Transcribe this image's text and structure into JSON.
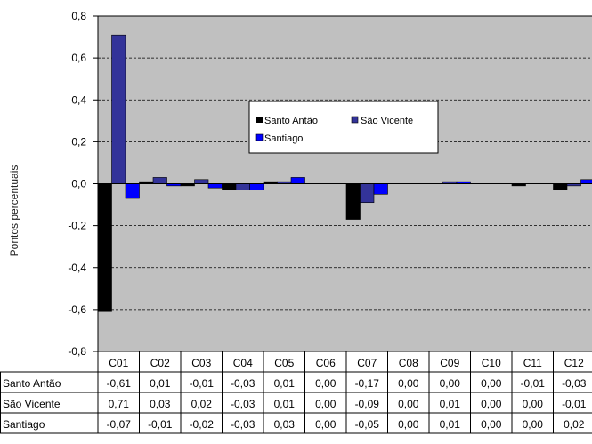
{
  "chart_data": {
    "type": "bar",
    "ylabel": "Pontos percentuais",
    "ylim": [
      -0.8,
      0.8
    ],
    "ytick_step": 0.2,
    "yticks": [
      "-0,8",
      "-0,6",
      "-0,4",
      "-0,2",
      "0,0",
      "0,2",
      "0,4",
      "0,6",
      "0,8"
    ],
    "grid": true,
    "legend": "inside top, two columns",
    "categories": [
      "C01",
      "C02",
      "C03",
      "C04",
      "C05",
      "C06",
      "C07",
      "C08",
      "C09",
      "C10",
      "C11",
      "C12"
    ],
    "series": [
      {
        "name": "Santo Antão",
        "color": "#000000",
        "values": [
          -0.61,
          0.01,
          -0.01,
          -0.03,
          0.01,
          0.0,
          -0.17,
          0.0,
          0.0,
          0.0,
          -0.01,
          -0.03
        ],
        "labels": [
          "-0,61",
          "0,01",
          "-0,01",
          "-0,03",
          "0,01",
          "0,00",
          "-0,17",
          "0,00",
          "0,00",
          "0,00",
          "-0,01",
          "-0,03"
        ]
      },
      {
        "name": "São Vicente",
        "color": "#333399",
        "values": [
          0.71,
          0.03,
          0.02,
          -0.03,
          0.01,
          0.0,
          -0.09,
          0.0,
          0.01,
          0.0,
          0.0,
          -0.01
        ],
        "labels": [
          "0,71",
          "0,03",
          "0,02",
          "-0,03",
          "0,01",
          "0,00",
          "-0,09",
          "0,00",
          "0,01",
          "0,00",
          "0,00",
          "-0,01"
        ]
      },
      {
        "name": "Santiago",
        "color": "#0000ff",
        "values": [
          -0.07,
          -0.01,
          -0.02,
          -0.03,
          0.03,
          0.0,
          -0.05,
          0.0,
          0.01,
          0.0,
          0.0,
          0.02
        ],
        "labels": [
          "-0,07",
          "-0,01",
          "-0,02",
          "-0,03",
          "0,03",
          "0,00",
          "-0,05",
          "0,00",
          "0,01",
          "0,00",
          "0,00",
          "0,02"
        ]
      }
    ],
    "plot_background": "#c0c0c0"
  }
}
